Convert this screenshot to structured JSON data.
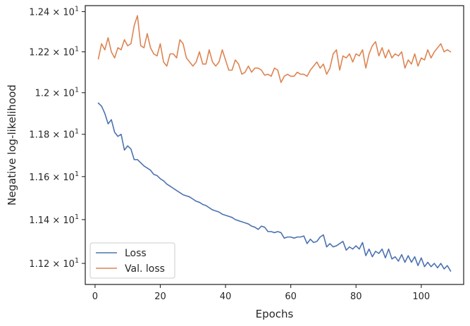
{
  "chart_data": {
    "type": "line",
    "xlabel": "Epochs",
    "ylabel": "Negative log-likelihood",
    "xlim": [
      -3,
      113
    ],
    "ylim": [
      11.105,
      12.43
    ],
    "y_scale": "log",
    "x_ticks": [
      0,
      20,
      40,
      60,
      80,
      100
    ],
    "x_tick_labels": [
      "0",
      "20",
      "40",
      "60",
      "80",
      "100"
    ],
    "y_ticks": [
      11.2,
      11.4,
      11.6,
      11.8,
      12.0,
      12.2,
      12.4
    ],
    "y_tick_labels": [
      {
        "mantissa": "1.12",
        "exp": "1"
      },
      {
        "mantissa": "1.14",
        "exp": "1"
      },
      {
        "mantissa": "1.16",
        "exp": "1"
      },
      {
        "mantissa": "1.18",
        "exp": "1"
      },
      {
        "mantissa": "1.2",
        "exp": "1"
      },
      {
        "mantissa": "1.22",
        "exp": "1"
      },
      {
        "mantissa": "1.24",
        "exp": "1"
      }
    ],
    "times_symbol": "×",
    "base": "10",
    "grid": false,
    "legend_position": "lower-left",
    "x": [
      1,
      2,
      3,
      4,
      5,
      6,
      7,
      8,
      9,
      10,
      11,
      12,
      13,
      14,
      15,
      16,
      17,
      18,
      19,
      20,
      21,
      22,
      23,
      24,
      25,
      26,
      27,
      28,
      29,
      30,
      31,
      32,
      33,
      34,
      35,
      36,
      37,
      38,
      39,
      40,
      41,
      42,
      43,
      44,
      45,
      46,
      47,
      48,
      49,
      50,
      51,
      52,
      53,
      54,
      55,
      56,
      57,
      58,
      59,
      60,
      61,
      62,
      63,
      64,
      65,
      66,
      67,
      68,
      69,
      70,
      71,
      72,
      73,
      74,
      75,
      76,
      77,
      78,
      79,
      80,
      81,
      82,
      83,
      84,
      85,
      86,
      87,
      88,
      89,
      90,
      91,
      92,
      93,
      94,
      95,
      96,
      97,
      98,
      99,
      100,
      101,
      102,
      103,
      104,
      105,
      106,
      107,
      108,
      109
    ],
    "series": [
      {
        "name": "Loss",
        "color": "#4c72b0",
        "values": [
          11.95,
          11.935,
          11.9,
          11.85,
          11.87,
          11.81,
          11.79,
          11.8,
          11.725,
          11.745,
          11.73,
          11.68,
          11.68,
          11.665,
          11.65,
          11.64,
          11.63,
          11.61,
          11.605,
          11.59,
          11.58,
          11.565,
          11.555,
          11.545,
          11.535,
          11.525,
          11.515,
          11.51,
          11.505,
          11.495,
          11.485,
          11.48,
          11.47,
          11.465,
          11.455,
          11.445,
          11.44,
          11.435,
          11.425,
          11.42,
          11.415,
          11.41,
          11.4,
          11.395,
          11.39,
          11.385,
          11.38,
          11.37,
          11.365,
          11.355,
          11.37,
          11.365,
          11.345,
          11.345,
          11.34,
          11.345,
          11.34,
          11.315,
          11.32,
          11.32,
          11.315,
          11.32,
          11.32,
          11.325,
          11.29,
          11.31,
          11.295,
          11.3,
          11.32,
          11.33,
          11.275,
          11.29,
          11.275,
          11.28,
          11.29,
          11.3,
          11.26,
          11.275,
          11.265,
          11.28,
          11.265,
          11.295,
          11.235,
          11.265,
          11.23,
          11.255,
          11.245,
          11.265,
          11.225,
          11.265,
          11.22,
          11.23,
          11.21,
          11.24,
          11.205,
          11.235,
          11.205,
          11.23,
          11.19,
          11.225,
          11.185,
          11.205,
          11.185,
          11.2,
          11.18,
          11.2,
          11.175,
          11.19,
          11.165
        ]
      },
      {
        "name": "Val. loss",
        "color": "#dd8452",
        "values": [
          12.165,
          12.24,
          12.21,
          12.27,
          12.2,
          12.17,
          12.22,
          12.21,
          12.26,
          12.23,
          12.24,
          12.33,
          12.38,
          12.23,
          12.22,
          12.29,
          12.22,
          12.19,
          12.18,
          12.24,
          12.15,
          12.13,
          12.19,
          12.19,
          12.17,
          12.26,
          12.24,
          12.17,
          12.15,
          12.13,
          12.15,
          12.2,
          12.14,
          12.14,
          12.21,
          12.15,
          12.13,
          12.15,
          12.21,
          12.16,
          12.11,
          12.11,
          12.16,
          12.14,
          12.09,
          12.1,
          12.13,
          12.1,
          12.12,
          12.12,
          12.11,
          12.085,
          12.09,
          12.08,
          12.12,
          12.11,
          12.05,
          12.08,
          12.09,
          12.08,
          12.08,
          12.1,
          12.09,
          12.09,
          12.08,
          12.11,
          12.13,
          12.15,
          12.12,
          12.14,
          12.09,
          12.12,
          12.19,
          12.21,
          12.11,
          12.18,
          12.17,
          12.19,
          12.15,
          12.19,
          12.18,
          12.21,
          12.12,
          12.19,
          12.23,
          12.25,
          12.18,
          12.22,
          12.17,
          12.21,
          12.17,
          12.19,
          12.18,
          12.2,
          12.12,
          12.16,
          12.14,
          12.19,
          12.13,
          12.17,
          12.16,
          12.21,
          12.17,
          12.2,
          12.22,
          12.24,
          12.2,
          12.21,
          12.2
        ]
      }
    ]
  }
}
